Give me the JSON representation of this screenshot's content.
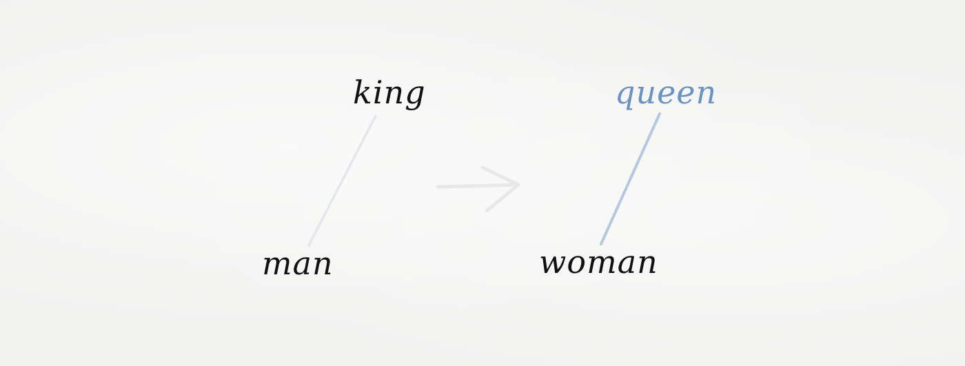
{
  "diagram": {
    "words": {
      "king": "king",
      "man": "man",
      "queen": "queen",
      "woman": "woman"
    },
    "colors": {
      "background": "#f2f2f1",
      "ink": "#111111",
      "highlight": "#6b93bd",
      "faint_line": "#e3e6ea",
      "blue_line": "#b6c8dc",
      "arrow": "#e6e8ea"
    }
  }
}
